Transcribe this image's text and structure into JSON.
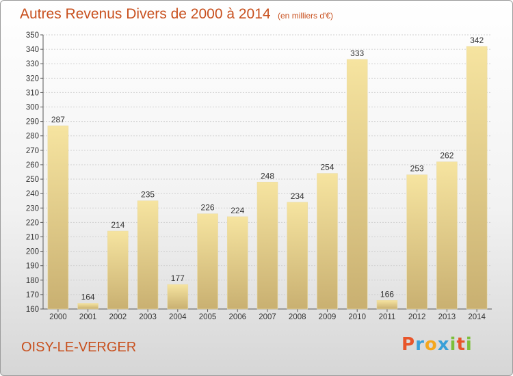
{
  "header": {
    "title": "Autres Revenus Divers de 2000 à 2014",
    "unit": "(en milliers d'€)"
  },
  "footer": {
    "commune": "OISY-LE-VERGER",
    "logo": [
      "P",
      "r",
      "o",
      "x",
      "i",
      "t",
      "i"
    ]
  },
  "colors": {
    "title": "#c8501e",
    "bar_light": "#f6e4a0",
    "bar_dark": "#c9b071",
    "logo": [
      "#e8552a",
      "#3aa0d8",
      "#f4a71e",
      "#3aa0d8",
      "#7cbf3a",
      "#e8552a",
      "#7cbf3a"
    ]
  },
  "chart_data": {
    "type": "bar",
    "categories": [
      "2000",
      "2001",
      "2002",
      "2003",
      "2004",
      "2005",
      "2006",
      "2007",
      "2008",
      "2009",
      "2010",
      "2011",
      "2012",
      "2013",
      "2014"
    ],
    "values": [
      287,
      164,
      214,
      235,
      177,
      226,
      224,
      248,
      234,
      254,
      333,
      166,
      253,
      262,
      342
    ],
    "ylim": [
      160,
      350
    ],
    "yticks": [
      160,
      170,
      180,
      190,
      200,
      210,
      220,
      230,
      240,
      250,
      260,
      270,
      280,
      290,
      300,
      310,
      320,
      330,
      340,
      350
    ],
    "grid": true,
    "legend": "none"
  }
}
